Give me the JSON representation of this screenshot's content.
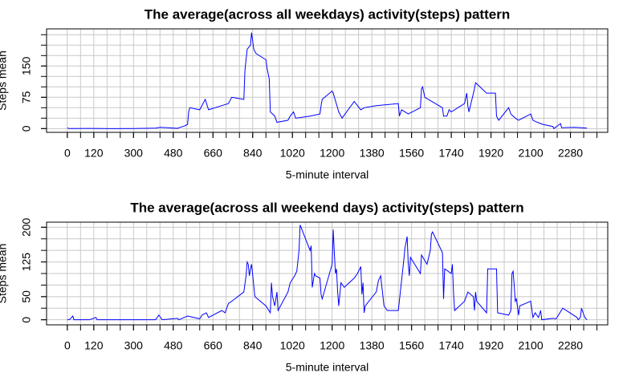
{
  "chart_data": [
    {
      "type": "line",
      "title": "The average(across all weekdays) activity(steps) pattern",
      "xlabel": "5-minute interval",
      "ylabel": "Steps mean",
      "color": "#0000ff",
      "x": [
        0,
        5,
        10,
        100,
        200,
        300,
        400,
        420,
        455,
        500,
        505,
        530,
        545,
        550,
        555,
        600,
        625,
        640,
        700,
        730,
        745,
        800,
        805,
        815,
        830,
        835,
        840,
        845,
        855,
        900,
        905,
        915,
        920,
        940,
        950,
        1000,
        1010,
        1025,
        1035,
        1100,
        1145,
        1150,
        1155,
        1200,
        1205,
        1230,
        1245,
        1300,
        1315,
        1330,
        1345,
        1400,
        1500,
        1505,
        1515,
        1545,
        1600,
        1605,
        1610,
        1620,
        1700,
        1705,
        1720,
        1730,
        1740,
        1800,
        1810,
        1815,
        1820,
        1845,
        1850,
        1900,
        1940,
        1945,
        1955,
        2000,
        2010,
        2030,
        2045,
        2100,
        2110,
        2130,
        2155,
        2200,
        2205,
        2230,
        2235,
        2240,
        2300,
        2355
      ],
      "values": [
        2,
        0.5,
        0.2,
        0.4,
        0,
        0.1,
        1,
        3,
        2,
        0.5,
        2,
        6,
        10,
        40,
        50,
        45,
        70,
        45,
        55,
        60,
        75,
        70,
        140,
        190,
        200,
        230,
        210,
        190,
        180,
        165,
        145,
        119,
        40,
        30,
        15,
        20,
        30,
        40,
        25,
        30,
        35,
        55,
        70,
        90,
        85,
        40,
        25,
        65,
        55,
        45,
        50,
        55,
        60,
        30,
        45,
        35,
        50,
        95,
        100,
        75,
        50,
        30,
        30,
        45,
        40,
        60,
        85,
        55,
        40,
        95,
        110,
        85,
        85,
        30,
        20,
        50,
        35,
        25,
        20,
        35,
        20,
        15,
        10,
        5,
        0,
        10,
        12,
        2,
        3,
        1
      ],
      "xlim": [
        -94,
        2449
      ],
      "ylim": [
        -9,
        239
      ],
      "xticks": [
        0,
        120,
        300,
        480,
        660,
        840,
        1020,
        1200,
        1380,
        1560,
        1740,
        1920,
        2100,
        2280
      ],
      "xgrid": [
        0,
        60,
        120,
        180,
        240,
        300,
        360,
        420,
        480,
        540,
        600,
        660,
        720,
        780,
        840,
        900,
        960,
        1020,
        1080,
        1140,
        1200,
        1260,
        1320,
        1380,
        1440,
        1500,
        1560,
        1620,
        1680,
        1740,
        1800,
        1860,
        1920,
        1980,
        2040,
        2100,
        2160,
        2220,
        2280,
        2340,
        2400
      ],
      "yticks": [
        0,
        75,
        150
      ],
      "ygrid": [
        0,
        25,
        50,
        75,
        100,
        125,
        150,
        175,
        200,
        225
      ]
    },
    {
      "type": "line",
      "title": "The average(across all weekend days) activity(steps) pattern",
      "xlabel": "5-minute interval",
      "ylabel": "Steps mean",
      "color": "#0000ff",
      "x": [
        0,
        10,
        25,
        30,
        100,
        130,
        135,
        400,
        415,
        430,
        500,
        505,
        545,
        600,
        610,
        630,
        640,
        700,
        715,
        730,
        745,
        800,
        810,
        815,
        820,
        825,
        830,
        835,
        850,
        900,
        920,
        925,
        930,
        940,
        950,
        955,
        1000,
        1010,
        1030,
        1040,
        1050,
        1055,
        1100,
        1105,
        1110,
        1120,
        1125,
        1145,
        1150,
        1155,
        1200,
        1205,
        1210,
        1215,
        1220,
        1225,
        1230,
        1240,
        1255,
        1300,
        1315,
        1330,
        1335,
        1340,
        1345,
        1350,
        1400,
        1410,
        1420,
        1435,
        1450,
        1500,
        1525,
        1530,
        1540,
        1545,
        1550,
        1555,
        1600,
        1605,
        1630,
        1645,
        1650,
        1655,
        1700,
        1705,
        1710,
        1740,
        1745,
        1750,
        1755,
        1800,
        1815,
        1840,
        1845,
        1850,
        1855,
        1900,
        1905,
        1945,
        1950,
        2000,
        2010,
        2015,
        2020,
        2025,
        2030,
        2035,
        2045,
        2050,
        2100,
        2110,
        2120,
        2135,
        2145,
        2150,
        2200,
        2215,
        2245,
        2310,
        2315,
        2325,
        2330,
        2345,
        2355
      ],
      "values": [
        0,
        0.2,
        8,
        0,
        0,
        5,
        0,
        0,
        10,
        0,
        3,
        0,
        8,
        2,
        10,
        15,
        5,
        20,
        15,
        35,
        40,
        60,
        95,
        125,
        120,
        95,
        110,
        120,
        50,
        30,
        15,
        80,
        50,
        30,
        60,
        20,
        60,
        80,
        95,
        105,
        150,
        205,
        150,
        160,
        70,
        100,
        95,
        90,
        55,
        45,
        120,
        195,
        145,
        100,
        110,
        60,
        30,
        80,
        70,
        90,
        100,
        115,
        55,
        80,
        15,
        30,
        60,
        85,
        95,
        30,
        20,
        20,
        130,
        155,
        180,
        120,
        95,
        135,
        100,
        140,
        120,
        150,
        185,
        190,
        145,
        45,
        110,
        100,
        120,
        60,
        20,
        40,
        60,
        50,
        20,
        60,
        40,
        15,
        110,
        110,
        15,
        10,
        20,
        100,
        105,
        75,
        40,
        45,
        10,
        30,
        40,
        5,
        15,
        5,
        20,
        0,
        3,
        2,
        25,
        5,
        0,
        5,
        25,
        5,
        0
      ],
      "xlim": [
        -94,
        2449
      ],
      "ylim": [
        -11,
        211
      ],
      "xticks": [
        0,
        120,
        300,
        480,
        660,
        840,
        1020,
        1200,
        1380,
        1560,
        1740,
        1920,
        2100,
        2280
      ],
      "xgrid": [
        0,
        60,
        120,
        180,
        240,
        300,
        360,
        420,
        480,
        540,
        600,
        660,
        720,
        780,
        840,
        900,
        960,
        1020,
        1080,
        1140,
        1200,
        1260,
        1320,
        1380,
        1440,
        1500,
        1560,
        1620,
        1680,
        1740,
        1800,
        1860,
        1920,
        1980,
        2040,
        2100,
        2160,
        2220,
        2280,
        2340,
        2400
      ],
      "yticks": [
        0,
        50,
        125,
        200
      ],
      "ygrid": [
        0,
        25,
        50,
        75,
        100,
        125,
        150,
        175,
        200
      ]
    }
  ]
}
